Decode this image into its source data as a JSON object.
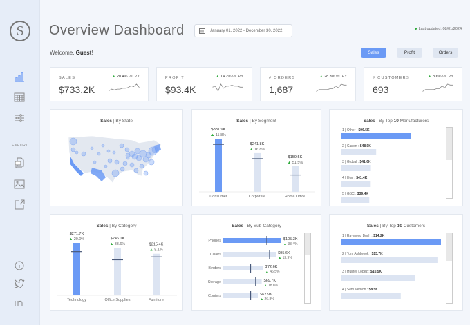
{
  "sidebar": {
    "logo": "S",
    "icons": [
      "bar-chart-icon",
      "table-icon",
      "sliders-icon"
    ],
    "export_label": "EXPORT",
    "export_icons": [
      "pdf-icon",
      "image-icon",
      "external-link-icon"
    ],
    "footer_icons": [
      "info-icon",
      "twitter-icon",
      "linkedin-icon"
    ],
    "active_color": "#6b9af5"
  },
  "header": {
    "title": "Overview Dashboard",
    "date_range": "January 01, 2022 - December 30, 2022",
    "last_updated": "Last updated: 08/01/2024",
    "welcome_prefix": "Welcome, ",
    "user": "Guest",
    "welcome_suffix": "!"
  },
  "toggle": {
    "buttons": [
      "Sales",
      "Profit",
      "Orders"
    ],
    "active": "Sales"
  },
  "kpis": [
    {
      "label": "SALES",
      "value": "$733.2K",
      "delta": "20.4%",
      "vs": "vs. PY",
      "spark": [
        3,
        5,
        4,
        5,
        5,
        6,
        6,
        7,
        9,
        8,
        11,
        7
      ]
    },
    {
      "label": "PROFIT",
      "value": "$93.4K",
      "delta": "14.2%",
      "vs": "vs. PY",
      "spark": [
        6,
        7,
        2,
        9,
        5,
        7,
        7,
        8,
        7,
        7,
        6,
        6
      ]
    },
    {
      "label": "# ORDERS",
      "value": "1,687",
      "delta": "28.3%",
      "vs": "vs. PY",
      "spark": [
        2,
        4,
        4,
        4,
        4,
        5,
        5,
        8,
        6,
        10,
        9,
        9
      ]
    },
    {
      "label": "# CUSTOMERS",
      "value": "693",
      "delta": "8.6%",
      "vs": "vs. PY",
      "spark": [
        2,
        4,
        4,
        4,
        4,
        5,
        5,
        8,
        6,
        10,
        9,
        9
      ]
    }
  ],
  "colors": {
    "highlight": "#6b9af5",
    "bar": "#dce4f2",
    "marker": "#4a5a7a",
    "up": "#2eaa3a"
  },
  "panels": {
    "state": {
      "title_bold": "Sales",
      "title_rest": " | By State"
    },
    "segment": {
      "title_bold": "Sales",
      "title_rest": " | By Segment",
      "bars": [
        {
          "label": "Consumer",
          "value": 331.9,
          "display": "$331.9K",
          "delta": "11.8%"
        },
        {
          "label": "Corporate",
          "value": 241.8,
          "display": "$241.8K",
          "delta": "16.8%"
        },
        {
          "label": "Home Office",
          "value": 159.5,
          "display": "$159.5K",
          "delta": "51.5%"
        }
      ]
    },
    "manufacturers": {
      "title_bold": "Sales",
      "title_rest": " | By Top ",
      "title_n": "10",
      "title_end": " Manufacturers",
      "bars": [
        {
          "rank": "1",
          "name": "Other",
          "value": 96.5,
          "display": "$96.5K"
        },
        {
          "rank": "2",
          "name": "Canon",
          "value": 48.9,
          "display": "$48.9K"
        },
        {
          "rank": "3",
          "name": "Global",
          "value": 41.6,
          "display": "$41.6K"
        },
        {
          "rank": "4",
          "name": "Hon",
          "value": 41.4,
          "display": "$41.4K"
        },
        {
          "rank": "5",
          "name": "GBC",
          "value": 39.4,
          "display": "$39.4K"
        }
      ]
    },
    "category": {
      "title_bold": "Sales",
      "title_rest": " | By Category",
      "bars": [
        {
          "label": "Technology",
          "value": 271.7,
          "display": "$271.7K",
          "delta": "20.0%"
        },
        {
          "label": "Office Supplies",
          "value": 246.1,
          "display": "$246.1K",
          "delta": "33.6%"
        },
        {
          "label": "Furniture",
          "value": 215.4,
          "display": "$215.4K",
          "delta": "8.1%"
        }
      ]
    },
    "subcategory": {
      "title_bold": "Sales",
      "title_rest": " | By Sub-Category",
      "bars": [
        {
          "label": "Phones",
          "value": 105.3,
          "display": "$105.3K",
          "delta": "33.4%"
        },
        {
          "label": "Chairs",
          "value": 95.6,
          "display": "$95.6K",
          "delta": "13.9%"
        },
        {
          "label": "Binders",
          "value": 72.6,
          "display": "$72.6K",
          "delta": "46.5%"
        },
        {
          "label": "Storage",
          "value": 69.7,
          "display": "$69.7K",
          "delta": "18.8%"
        },
        {
          "label": "Copiers",
          "value": 62.9,
          "display": "$62.9K",
          "delta": "26.8%"
        }
      ]
    },
    "customers": {
      "title_bold": "Sales",
      "title_rest": " | By Top ",
      "title_n": "10",
      "title_end": " Customers",
      "bars": [
        {
          "rank": "1",
          "name": "Raymond Buch",
          "value": 14.2,
          "display": "$14.2K"
        },
        {
          "rank": "2",
          "name": "Tom Ashbrook",
          "value": 13.7,
          "display": "$13.7K"
        },
        {
          "rank": "3",
          "name": "Hunter Lopez",
          "value": 10.5,
          "display": "$10.5K"
        },
        {
          "rank": "4",
          "name": "Seth Vernon",
          "value": 8.5,
          "display": "$8.5K"
        }
      ]
    }
  }
}
